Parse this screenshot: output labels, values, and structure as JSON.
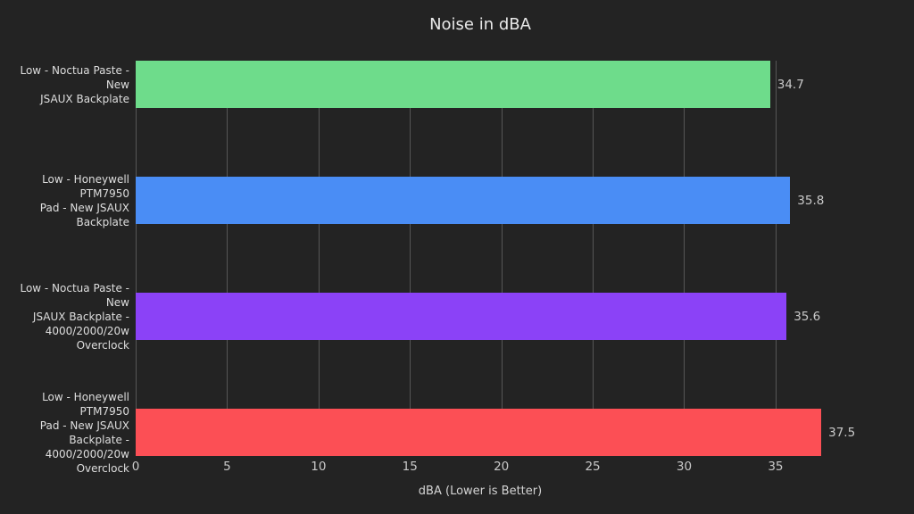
{
  "page": {
    "background": "#232323"
  },
  "chart_data": {
    "type": "bar",
    "orientation": "horizontal",
    "title": "Noise in dBA",
    "xlabel": "dBA (Lower is Better)",
    "categories": [
      [
        "Low - Noctua Paste - New",
        "JSAUX Backplate"
      ],
      [
        "Low - Honeywell PTM7950",
        "Pad - New JSAUX",
        "Backplate"
      ],
      [
        "Low - Noctua Paste - New",
        "JSAUX Backplate -",
        "4000/2000/20w Overclock"
      ],
      [
        "Low - Honeywell PTM7950",
        "Pad - New JSAUX",
        "Backplate -",
        "4000/2000/20w Overclock"
      ]
    ],
    "values": [
      34.7,
      35.8,
      35.6,
      37.5
    ],
    "value_labels": [
      "34.7",
      "35.8",
      "35.6",
      "37.5"
    ],
    "colors": [
      "#6edc8b",
      "#4a8df5",
      "#8b42f7",
      "#fc4f55"
    ],
    "xticks": [
      0,
      5,
      10,
      15,
      20,
      25,
      30,
      35
    ],
    "xlim": [
      0,
      41.4
    ],
    "grid": "vertical",
    "legend": "none",
    "grid_color": "#565656",
    "text_color": "#e9e9e9"
  }
}
